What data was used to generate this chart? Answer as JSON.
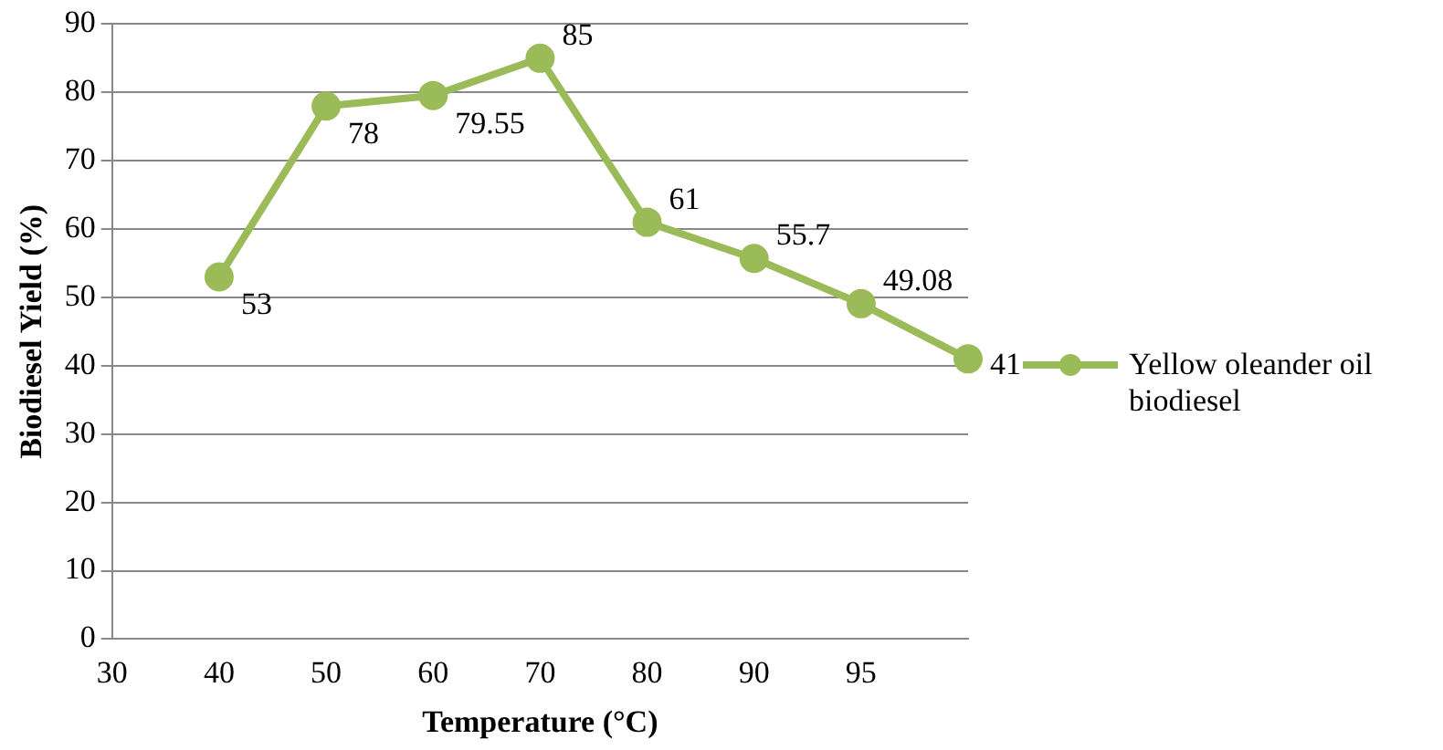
{
  "chart_data": {
    "type": "line",
    "xlabel": "Temperature (°C)",
    "ylabel": "Biodiesel Yield (%)",
    "categories": [
      "30",
      "40",
      "50",
      "60",
      "70",
      "80",
      "90",
      "95",
      null
    ],
    "series": [
      {
        "name": "Yellow oleander oil biodiesel",
        "color": "#9bbb59",
        "values": [
          null,
          53,
          78,
          79.55,
          85,
          61,
          55.7,
          49.08,
          41
        ]
      }
    ],
    "ylim": [
      0,
      90
    ],
    "yticks": [
      0,
      10,
      20,
      30,
      40,
      50,
      60,
      70,
      80,
      90
    ],
    "grid": "y",
    "legend": "right",
    "marker": "circle",
    "line_style": "solid",
    "data_labels": true
  }
}
